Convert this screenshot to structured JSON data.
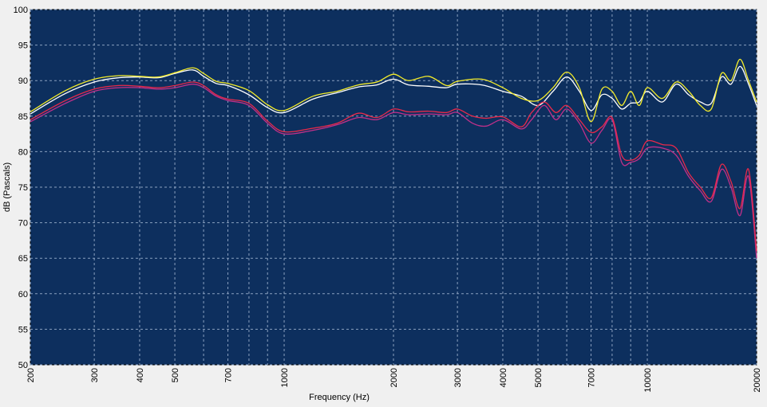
{
  "chart_data": {
    "type": "line",
    "title": "",
    "xlabel": "Frequency (Hz)",
    "ylabel": "dB (Pascals)",
    "x_scale": "log",
    "xlim": [
      200,
      20000
    ],
    "ylim": [
      50,
      100
    ],
    "grid": true,
    "plot_background": "#0d2f5e",
    "grid_color": "#8aa0bf",
    "x_ticks": [
      200,
      300,
      400,
      500,
      600,
      700,
      800,
      900,
      1000,
      2000,
      3000,
      4000,
      5000,
      6000,
      7000,
      8000,
      9000,
      10000,
      20000
    ],
    "x_tick_labels": [
      {
        "value": 200,
        "label": "200"
      },
      {
        "value": 300,
        "label": "300"
      },
      {
        "value": 400,
        "label": "400"
      },
      {
        "value": 500,
        "label": "500"
      },
      {
        "value": 700,
        "label": "700"
      },
      {
        "value": 1000,
        "label": "1000"
      },
      {
        "value": 2000,
        "label": "2000"
      },
      {
        "value": 3000,
        "label": "3000"
      },
      {
        "value": 4000,
        "label": "4000"
      },
      {
        "value": 5000,
        "label": "5000"
      },
      {
        "value": 7000,
        "label": "7000"
      },
      {
        "value": 10000,
        "label": "10000"
      },
      {
        "value": 20000,
        "label": "20000"
      }
    ],
    "y_ticks": [
      50,
      55,
      60,
      65,
      70,
      75,
      80,
      85,
      90,
      95,
      100
    ],
    "y_tick_labels": [
      "50",
      "55",
      "60",
      "65",
      "70",
      "75",
      "80",
      "85",
      "90",
      "95",
      "100"
    ],
    "series": [
      {
        "color": "#ffffff",
        "x": [
          200,
          250,
          300,
          350,
          400,
          450,
          500,
          560,
          600,
          650,
          700,
          800,
          900,
          1000,
          1200,
          1400,
          1600,
          1800,
          2000,
          2200,
          2500,
          2800,
          3000,
          3500,
          4000,
          4500,
          5000,
          5500,
          6000,
          6500,
          7000,
          7500,
          8000,
          8500,
          9000,
          9500,
          10000,
          11000,
          12000,
          13000,
          14000,
          15000,
          16000,
          17000,
          18000,
          19000,
          20000
        ],
        "y": [
          85.3,
          88.2,
          89.8,
          90.4,
          90.5,
          90.4,
          91.0,
          91.5,
          90.6,
          89.6,
          89.3,
          88.0,
          86.2,
          85.5,
          87.4,
          88.3,
          89.1,
          89.4,
          90.2,
          89.4,
          89.2,
          89.0,
          89.5,
          89.4,
          88.5,
          87.8,
          86.5,
          88.5,
          90.5,
          88.5,
          85.8,
          88.0,
          87.5,
          86.0,
          86.8,
          87.0,
          88.5,
          87.0,
          89.5,
          88.0,
          87.0,
          86.8,
          90.5,
          89.5,
          92.0,
          89.5,
          86.5
        ]
      },
      {
        "color": "#f4ec2a",
        "x": [
          200,
          250,
          300,
          350,
          400,
          450,
          500,
          560,
          600,
          650,
          700,
          800,
          900,
          1000,
          1200,
          1400,
          1600,
          1800,
          2000,
          2200,
          2500,
          2800,
          3000,
          3500,
          4000,
          4500,
          5000,
          5500,
          6000,
          6500,
          7000,
          7500,
          8000,
          8500,
          9000,
          9500,
          10000,
          11000,
          12000,
          13000,
          14000,
          15000,
          16000,
          17000,
          18000,
          19000,
          20000
        ],
        "y": [
          85.6,
          88.6,
          90.2,
          90.7,
          90.6,
          90.5,
          91.1,
          91.8,
          91.0,
          89.9,
          89.6,
          88.6,
          86.6,
          85.8,
          87.8,
          88.5,
          89.4,
          89.8,
          90.9,
          90.0,
          90.6,
          89.3,
          89.9,
          90.2,
          89.0,
          87.5,
          87.2,
          89.0,
          91.2,
          89.0,
          84.2,
          88.8,
          88.5,
          86.5,
          88.5,
          86.5,
          89.0,
          87.5,
          89.8,
          88.5,
          86.5,
          86.0,
          91.0,
          90.0,
          93.0,
          90.0,
          87.0
        ]
      },
      {
        "color": "#c0308a",
        "x": [
          200,
          250,
          300,
          350,
          400,
          450,
          500,
          560,
          600,
          650,
          700,
          800,
          900,
          1000,
          1200,
          1400,
          1600,
          1800,
          2000,
          2200,
          2500,
          2800,
          3000,
          3300,
          3600,
          4000,
          4500,
          4800,
          5200,
          5600,
          6000,
          6500,
          7000,
          7500,
          8000,
          8500,
          9000,
          9500,
          10000,
          11000,
          12000,
          13000,
          14000,
          15000,
          16000,
          17000,
          18000,
          19000,
          20000
        ],
        "y": [
          84.2,
          86.8,
          88.5,
          89.0,
          89.0,
          88.8,
          89.0,
          89.5,
          89.0,
          87.8,
          87.2,
          86.5,
          84.0,
          82.5,
          83.0,
          83.8,
          84.8,
          84.5,
          85.5,
          85.2,
          85.3,
          85.2,
          85.5,
          84.0,
          83.6,
          84.5,
          83.2,
          84.5,
          86.5,
          84.5,
          86.0,
          84.0,
          81.2,
          83.0,
          84.5,
          78.5,
          78.5,
          79.0,
          80.5,
          80.5,
          79.5,
          76.5,
          74.5,
          73.0,
          77.5,
          75.0,
          71.0,
          76.5,
          65.0
        ]
      },
      {
        "color": "#e8294a",
        "x": [
          200,
          250,
          300,
          350,
          400,
          450,
          500,
          560,
          600,
          650,
          700,
          800,
          900,
          1000,
          1200,
          1400,
          1600,
          1800,
          2000,
          2200,
          2500,
          2800,
          3000,
          3300,
          3600,
          4000,
          4500,
          4800,
          5200,
          5600,
          6000,
          6500,
          7000,
          7500,
          8000,
          8500,
          9000,
          9500,
          10000,
          11000,
          12000,
          13000,
          14000,
          15000,
          16000,
          17000,
          18000,
          19000,
          20000
        ],
        "y": [
          84.5,
          87.2,
          88.8,
          89.3,
          89.2,
          89.0,
          89.3,
          89.8,
          89.3,
          88.0,
          87.4,
          86.8,
          84.3,
          82.8,
          83.3,
          84.0,
          85.4,
          84.8,
          86.0,
          85.6,
          85.7,
          85.5,
          86.0,
          85.0,
          84.7,
          84.9,
          83.5,
          85.5,
          87.0,
          85.5,
          86.5,
          84.5,
          82.7,
          83.5,
          84.8,
          79.5,
          78.8,
          79.5,
          81.5,
          81.0,
          80.5,
          77.0,
          75.0,
          73.5,
          78.2,
          75.8,
          72.0,
          77.5,
          66.0
        ]
      }
    ]
  }
}
